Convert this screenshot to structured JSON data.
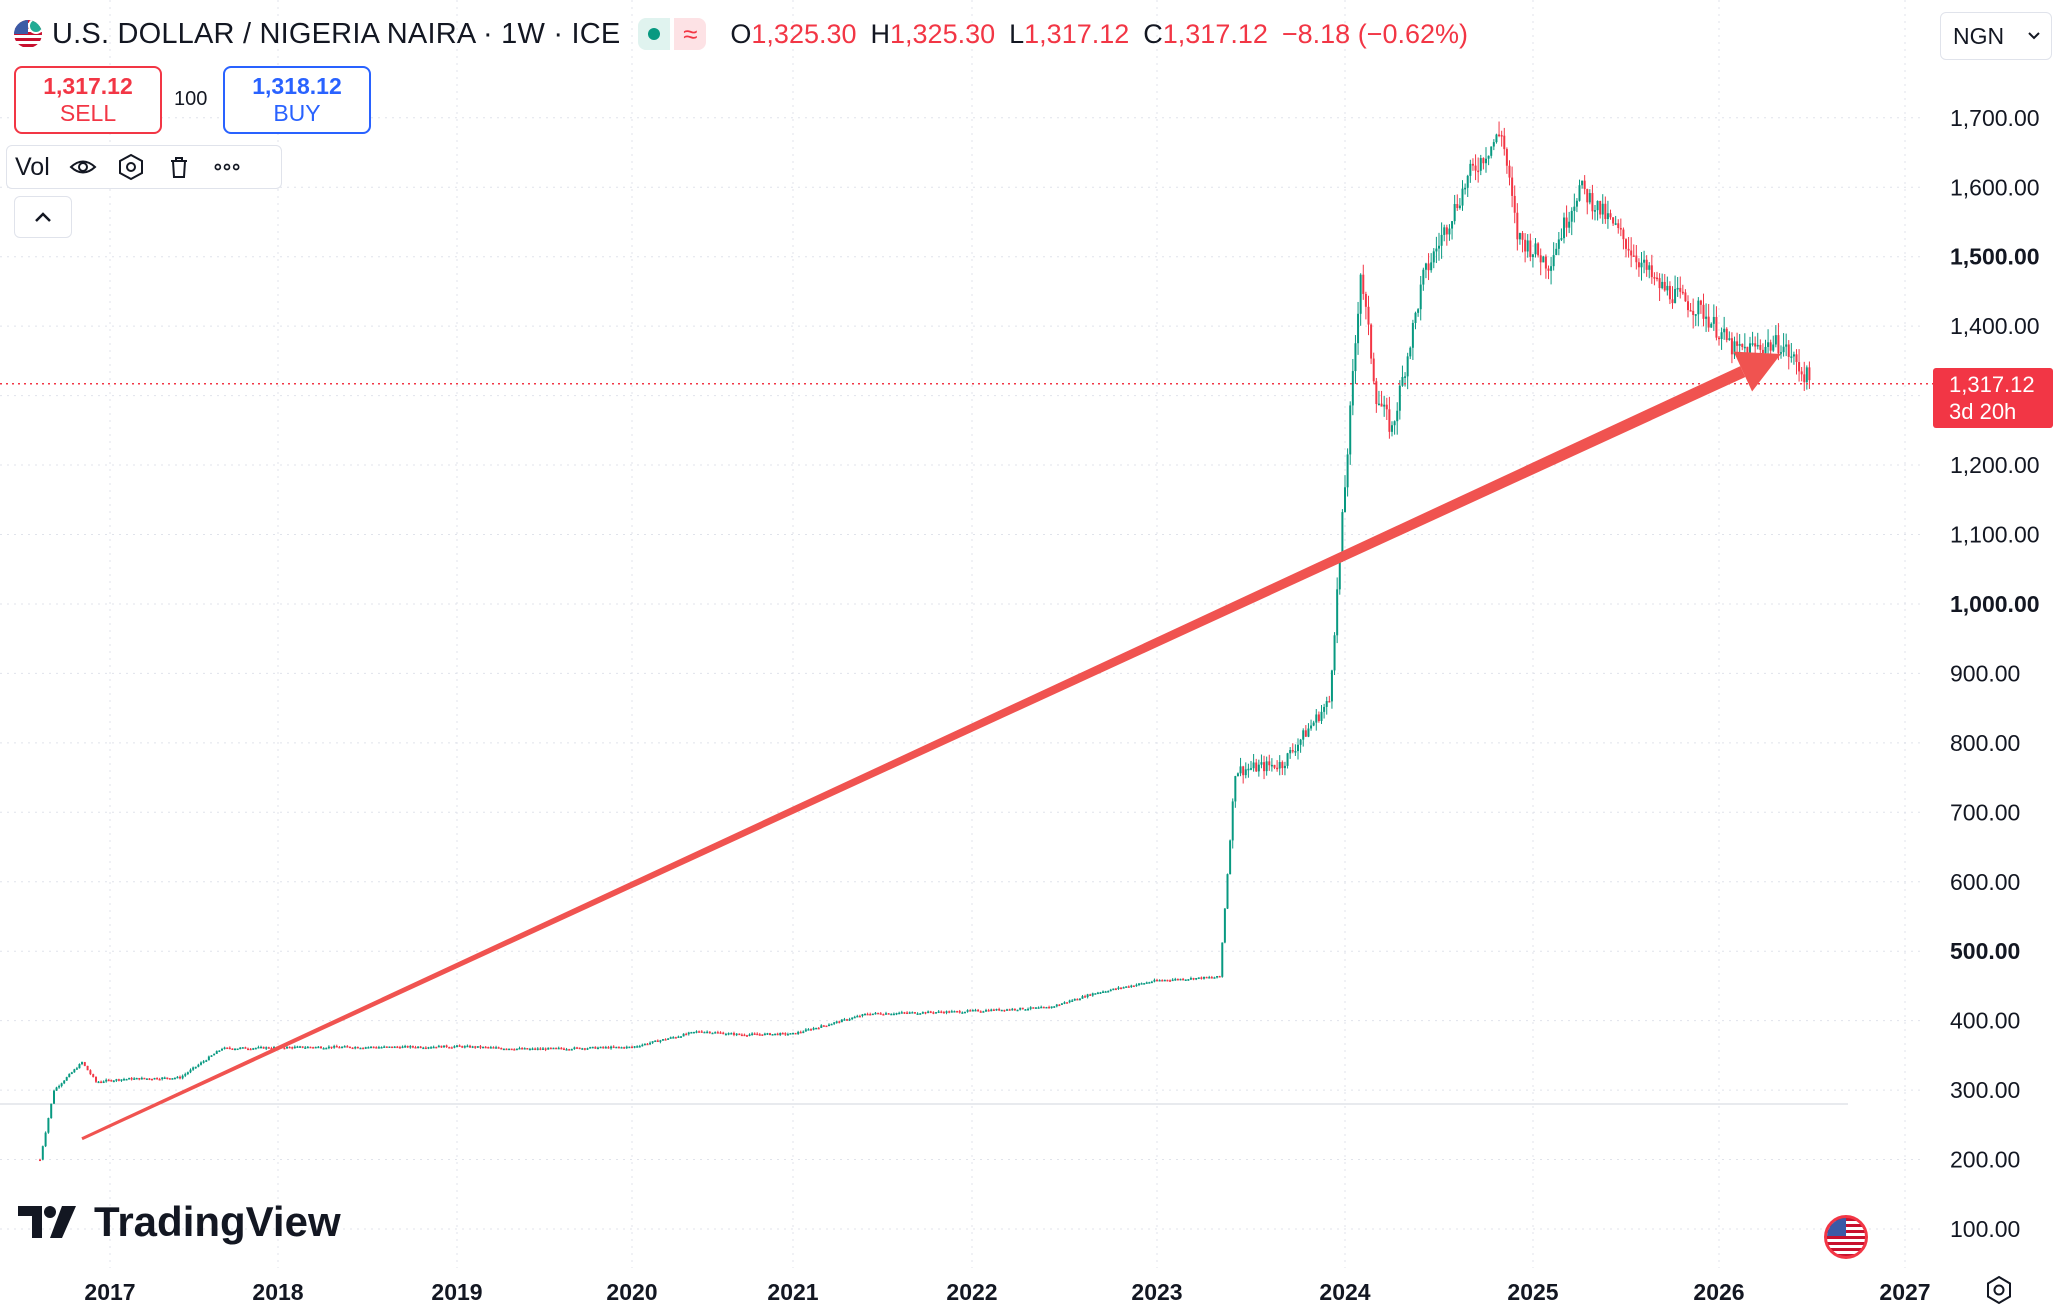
{
  "header": {
    "symbol": "U.S. DOLLAR / NIGERIA NAIRA · 1W · ICE",
    "ohlc": {
      "o_label": "O",
      "o": "1,325.30",
      "h_label": "H",
      "h": "1,325.30",
      "l_label": "L",
      "l": "1,317.12",
      "c_label": "C",
      "c": "1,317.12",
      "change": "−8.18 (−0.62%)"
    }
  },
  "trade": {
    "sell_price": "1,317.12",
    "sell_label": "SELL",
    "quantity": "100",
    "buy_price": "1,318.12",
    "buy_label": "BUY"
  },
  "indicator": {
    "label": "Vol"
  },
  "currency_select": {
    "value": "NGN"
  },
  "price_tag": {
    "price": "1,317.12",
    "countdown": "3d 20h"
  },
  "brand": {
    "name": "TradingView"
  },
  "colors": {
    "up": "#089981",
    "down": "#f23645",
    "arrow": "#f05350",
    "buy": "#2962ff"
  },
  "chart_data": {
    "type": "candlestick",
    "title": "U.S. DOLLAR / NIGERIA NAIRA · 1W · ICE",
    "y_ticks": [
      100,
      200,
      300,
      400,
      500,
      600,
      700,
      800,
      900,
      1000,
      1100,
      1200,
      1300,
      1400,
      1500,
      1600,
      1700
    ],
    "y_tick_labels": [
      "100.00",
      "200.00",
      "300.00",
      "400.00",
      "500.00",
      "600.00",
      "700.00",
      "800.00",
      "900.00",
      "1,000.00",
      "1,100.00",
      "1,200.00",
      "",
      "1,400.00",
      "1,500.00",
      "1,600.00",
      "1,700.00"
    ],
    "bold_y_ticks": [
      "500.00",
      "1,000.00",
      "1,500.00"
    ],
    "x_tick_labels": [
      "2017",
      "2018",
      "2019",
      "2020",
      "2021",
      "2022",
      "2023",
      "2024",
      "2025",
      "2026",
      "2027"
    ],
    "ylim": [
      50,
      1760
    ],
    "last_price": 1317.12,
    "price_line": 1317.12,
    "grid": true,
    "series": [
      {
        "name": "",
        "points": [
          [
            "2016-08",
            200
          ],
          [
            "2016-09",
            300
          ],
          [
            "2016-11",
            340
          ],
          [
            "2016-12",
            312
          ],
          [
            "2017-02",
            316
          ],
          [
            "2017-06",
            318
          ],
          [
            "2017-09",
            360
          ],
          [
            "2018-03",
            362
          ],
          [
            "2018-09",
            362
          ],
          [
            "2019-01",
            363
          ],
          [
            "2019-06",
            359
          ],
          [
            "2020-01",
            362
          ],
          [
            "2020-06",
            385
          ],
          [
            "2020-09",
            380
          ],
          [
            "2021-01",
            381
          ],
          [
            "2021-06",
            410
          ],
          [
            "2021-12",
            413
          ],
          [
            "2022-06",
            419
          ],
          [
            "2022-09",
            440
          ],
          [
            "2023-01",
            458
          ],
          [
            "2023-05",
            463
          ],
          [
            "2023-06",
            760
          ],
          [
            "2023-09",
            770
          ],
          [
            "2023-12",
            860
          ],
          [
            "2024-02",
            1480
          ],
          [
            "2024-03",
            1300
          ],
          [
            "2024-04",
            1250
          ],
          [
            "2024-06",
            1470
          ],
          [
            "2024-09",
            1620
          ],
          [
            "2024-11",
            1680
          ],
          [
            "2024-12",
            1530
          ],
          [
            "2025-02",
            1490
          ],
          [
            "2025-04",
            1600
          ],
          [
            "2025-06",
            1550
          ],
          [
            "2025-09",
            1460
          ],
          [
            "2025-12",
            1420
          ],
          [
            "2026-02",
            1365
          ],
          [
            "2026-05",
            1375
          ],
          [
            "2026-07",
            1317
          ]
        ]
      }
    ],
    "annotations": [
      {
        "type": "arrow",
        "from": [
          "2016-11",
          230
        ],
        "to": [
          "2026-05",
          1360
        ]
      }
    ]
  }
}
